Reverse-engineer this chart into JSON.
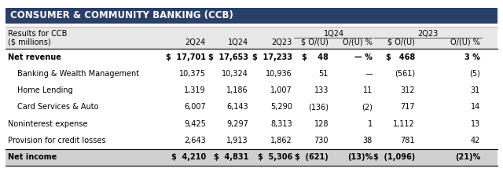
{
  "title": "CONSUMER & COMMUNITY BANKING (CCB)",
  "title_bg": "#2B3F6B",
  "title_color": "#FFFFFF",
  "outer_bg": "#FFFFFF",
  "header_bg": "#E8E8E8",
  "net_income_bg": "#D0D0D0",
  "col_group1_label": "1Q24",
  "col_group2_label": "2Q23",
  "header_row1_left": "Results for CCB",
  "header_row2_left": "($ millions)",
  "col_labels": [
    "2Q24",
    "1Q24",
    "2Q23",
    "$ O/(U)",
    "O/(U) %",
    "$ O/(U)",
    "O/(U) %"
  ],
  "rows": [
    {
      "label": "Net revenue",
      "bold": true,
      "indent": false,
      "vals": [
        "$  17,701",
        "$  17,653",
        "$  17,233",
        "$    48",
        "— %",
        "$   468",
        "3 %"
      ]
    },
    {
      "label": "Banking & Wealth Management",
      "bold": false,
      "indent": true,
      "vals": [
        "10,375",
        "10,324",
        "10,936",
        "51",
        "—",
        "(561)",
        "(5)"
      ]
    },
    {
      "label": "Home Lending",
      "bold": false,
      "indent": true,
      "vals": [
        "1,319",
        "1,186",
        "1,007",
        "133",
        "11",
        "312",
        "31"
      ]
    },
    {
      "label": "Card Services & Auto",
      "bold": false,
      "indent": true,
      "vals": [
        "6,007",
        "6,143",
        "5,290",
        "(136)",
        "(2)",
        "717",
        "14"
      ]
    },
    {
      "label": "Noninterest expense",
      "bold": false,
      "indent": false,
      "vals": [
        "9,425",
        "9,297",
        "8,313",
        "128",
        "1",
        "1,112",
        "13"
      ]
    },
    {
      "label": "Provision for credit losses",
      "bold": false,
      "indent": false,
      "vals": [
        "2,643",
        "1,913",
        "1,862",
        "730",
        "38",
        "781",
        "42"
      ]
    },
    {
      "label": "Net income",
      "bold": true,
      "indent": false,
      "vals": [
        "$  4,210",
        "$  4,831",
        "$  5,306",
        "$  (621)",
        "(13)%",
        "$  (1,096)",
        "(21)%"
      ]
    }
  ],
  "font_size": 7.0,
  "title_font_size": 8.5,
  "fig_width": 6.4,
  "fig_height": 2.19,
  "dpi": 100
}
